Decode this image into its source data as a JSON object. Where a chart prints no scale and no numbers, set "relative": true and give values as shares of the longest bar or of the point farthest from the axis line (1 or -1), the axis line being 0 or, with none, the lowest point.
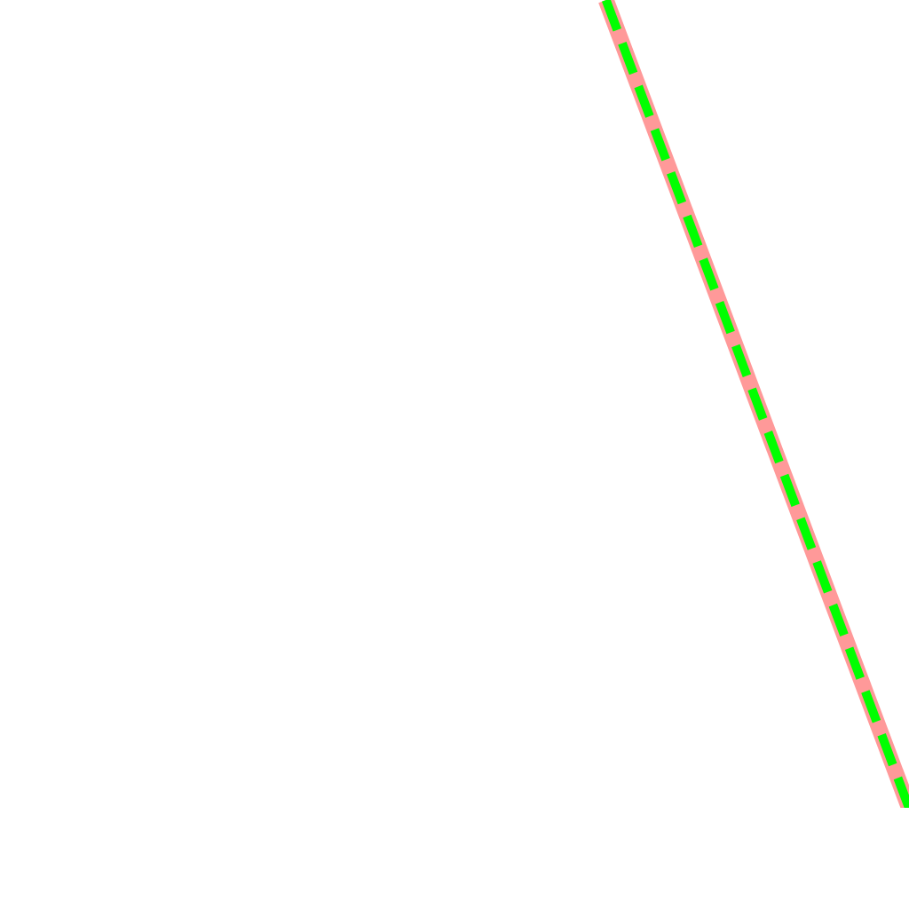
{
  "chart_data": {
    "type": "line",
    "relative": true,
    "categories": [
      null,
      null,
      null,
      null
    ],
    "legend": false,
    "marker": "none",
    "series": [
      {
        "color": "#ff9999",
        "values": [
          null,
          null,
          1,
          0
        ],
        "line_style": "solid"
      },
      {
        "color": "#00ff00",
        "values": [
          null,
          null,
          1,
          0
        ],
        "line_style": "dashed"
      }
    ]
  }
}
